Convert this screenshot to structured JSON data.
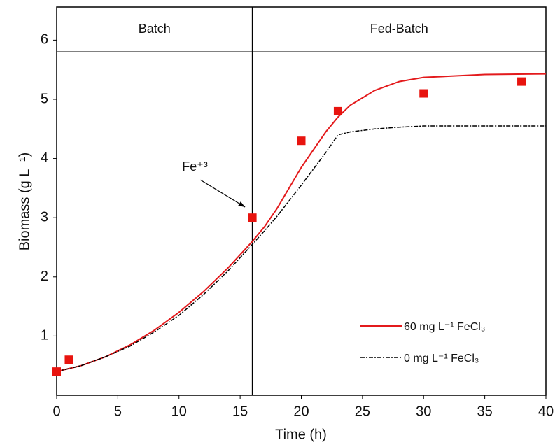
{
  "chart_data": {
    "type": "line",
    "xlabel": "Time (h)",
    "ylabel": "Biomass (g L⁻¹)",
    "x": [
      0,
      2,
      4,
      6,
      8,
      10,
      12,
      14,
      16,
      17,
      18,
      20,
      22,
      23,
      24,
      26,
      28,
      30,
      35,
      40
    ],
    "series": [
      {
        "name": "60 mg L⁻¹ FeCl₃",
        "color": "#e31a1c",
        "dash": false,
        "values": [
          0.4,
          0.5,
          0.65,
          0.85,
          1.1,
          1.4,
          1.75,
          2.15,
          2.6,
          2.85,
          3.15,
          3.85,
          4.45,
          4.7,
          4.9,
          5.15,
          5.3,
          5.37,
          5.42,
          5.43
        ]
      },
      {
        "name": "0 mg L⁻¹ FeCl₃",
        "color": "#000000",
        "dash": true,
        "values": [
          0.4,
          0.5,
          0.65,
          0.83,
          1.07,
          1.35,
          1.7,
          2.1,
          2.55,
          2.78,
          3.02,
          3.55,
          4.1,
          4.4,
          4.45,
          4.5,
          4.53,
          4.55,
          4.55,
          4.55
        ]
      }
    ],
    "observations": {
      "color": "#e8140f",
      "x": [
        0,
        1,
        16,
        20,
        23,
        30,
        38
      ],
      "values": [
        0.4,
        0.6,
        3.0,
        4.3,
        4.8,
        5.1,
        5.3
      ]
    },
    "phases": [
      "Batch",
      "Fed-Batch"
    ],
    "phase_divider_x": 16,
    "phase_band_y": 5.8,
    "annotation": {
      "text": "Fe⁺³",
      "xytext": [
        11.3,
        3.85
      ],
      "xy": [
        15.4,
        3.18
      ]
    },
    "xlim": [
      0,
      40
    ],
    "xticks": [
      0,
      5,
      10,
      15,
      20,
      25,
      30,
      35,
      40
    ],
    "ylim": [
      0,
      6.56
    ],
    "yticks": [
      1,
      2,
      3,
      4,
      5,
      6
    ],
    "legend": "lower right"
  }
}
